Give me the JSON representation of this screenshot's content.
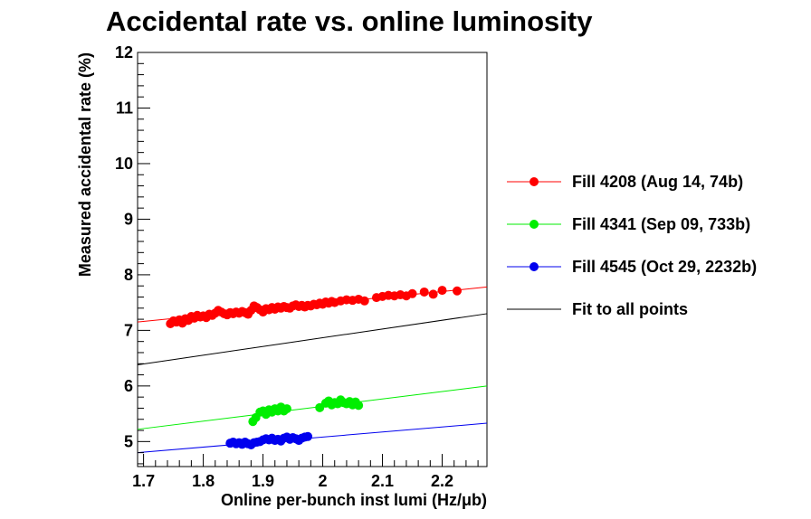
{
  "chart_data": {
    "type": "scatter",
    "title": "Accidental rate vs. online luminosity",
    "xlabel": "Online per-bunch inst lumi (Hz/μb)",
    "ylabel": "Measured accidental rate (%)",
    "xlim": [
      1.69,
      2.275
    ],
    "ylim": [
      4.55,
      12.0
    ],
    "x_ticks": [
      1.7,
      1.8,
      1.9,
      2.0,
      2.1,
      2.2
    ],
    "x_tick_labels": [
      "1.7",
      "1.8",
      "1.9",
      "2",
      "2.1",
      "2.2"
    ],
    "y_ticks": [
      5,
      6,
      7,
      8,
      9,
      10,
      11,
      12
    ],
    "y_tick_labels": [
      "5",
      "6",
      "7",
      "8",
      "9",
      "10",
      "11",
      "12"
    ],
    "grid": false,
    "legend_position": "right",
    "series": [
      {
        "name": "Fill 4208 (Aug 14, 74b)",
        "color": "#ff0000",
        "marker": "circle",
        "fit": {
          "x": [
            1.69,
            2.275
          ],
          "y": [
            7.15,
            7.78
          ]
        },
        "points": [
          [
            1.745,
            7.12
          ],
          [
            1.75,
            7.17
          ],
          [
            1.755,
            7.15
          ],
          [
            1.76,
            7.19
          ],
          [
            1.765,
            7.13
          ],
          [
            1.77,
            7.21
          ],
          [
            1.775,
            7.18
          ],
          [
            1.78,
            7.25
          ],
          [
            1.785,
            7.22
          ],
          [
            1.79,
            7.27
          ],
          [
            1.795,
            7.24
          ],
          [
            1.8,
            7.26
          ],
          [
            1.805,
            7.23
          ],
          [
            1.81,
            7.29
          ],
          [
            1.815,
            7.27
          ],
          [
            1.82,
            7.31
          ],
          [
            1.825,
            7.36
          ],
          [
            1.83,
            7.33
          ],
          [
            1.835,
            7.3
          ],
          [
            1.84,
            7.28
          ],
          [
            1.845,
            7.32
          ],
          [
            1.85,
            7.3
          ],
          [
            1.855,
            7.33
          ],
          [
            1.86,
            7.31
          ],
          [
            1.865,
            7.34
          ],
          [
            1.87,
            7.32
          ],
          [
            1.875,
            7.29
          ],
          [
            1.88,
            7.36
          ],
          [
            1.885,
            7.44
          ],
          [
            1.89,
            7.41
          ],
          [
            1.895,
            7.37
          ],
          [
            1.9,
            7.33
          ],
          [
            1.905,
            7.39
          ],
          [
            1.91,
            7.37
          ],
          [
            1.915,
            7.41
          ],
          [
            1.92,
            7.38
          ],
          [
            1.925,
            7.42
          ],
          [
            1.93,
            7.4
          ],
          [
            1.935,
            7.43
          ],
          [
            1.94,
            7.41
          ],
          [
            1.945,
            7.4
          ],
          [
            1.95,
            7.44
          ],
          [
            1.955,
            7.46
          ],
          [
            1.96,
            7.43
          ],
          [
            1.965,
            7.45
          ],
          [
            1.97,
            7.42
          ],
          [
            1.975,
            7.45
          ],
          [
            1.98,
            7.44
          ],
          [
            1.985,
            7.47
          ],
          [
            1.99,
            7.46
          ],
          [
            1.995,
            7.49
          ],
          [
            2.0,
            7.47
          ],
          [
            2.005,
            7.51
          ],
          [
            2.01,
            7.49
          ],
          [
            2.015,
            7.52
          ],
          [
            2.02,
            7.5
          ],
          [
            2.03,
            7.53
          ],
          [
            2.04,
            7.55
          ],
          [
            2.05,
            7.54
          ],
          [
            2.06,
            7.56
          ],
          [
            2.07,
            7.53
          ],
          [
            2.09,
            7.59
          ],
          [
            2.1,
            7.61
          ],
          [
            2.11,
            7.63
          ],
          [
            2.12,
            7.62
          ],
          [
            2.13,
            7.64
          ],
          [
            2.14,
            7.62
          ],
          [
            2.15,
            7.66
          ],
          [
            2.17,
            7.69
          ],
          [
            2.185,
            7.65
          ],
          [
            2.2,
            7.72
          ],
          [
            2.225,
            7.71
          ]
        ]
      },
      {
        "name": "Fill 4341 (Sep 09, 733b)",
        "color": "#00ee00",
        "marker": "circle",
        "fit": {
          "x": [
            1.69,
            2.275
          ],
          "y": [
            5.22,
            6.0
          ]
        },
        "points": [
          [
            1.883,
            5.36
          ],
          [
            1.888,
            5.43
          ],
          [
            1.895,
            5.53
          ],
          [
            1.9,
            5.55
          ],
          [
            1.905,
            5.49
          ],
          [
            1.91,
            5.57
          ],
          [
            1.915,
            5.53
          ],
          [
            1.92,
            5.59
          ],
          [
            1.925,
            5.55
          ],
          [
            1.93,
            5.62
          ],
          [
            1.935,
            5.55
          ],
          [
            1.94,
            5.59
          ],
          [
            1.995,
            5.61
          ],
          [
            2.005,
            5.69
          ],
          [
            2.01,
            5.73
          ],
          [
            2.015,
            5.66
          ],
          [
            2.02,
            5.7
          ],
          [
            2.025,
            5.68
          ],
          [
            2.03,
            5.75
          ],
          [
            2.035,
            5.7
          ],
          [
            2.04,
            5.68
          ],
          [
            2.045,
            5.72
          ],
          [
            2.05,
            5.66
          ],
          [
            2.055,
            5.71
          ],
          [
            2.06,
            5.65
          ]
        ]
      },
      {
        "name": "Fill 4545 (Oct 29, 2232b)",
        "color": "#0000ee",
        "marker": "circle",
        "fit": {
          "x": [
            1.69,
            2.275
          ],
          "y": [
            4.8,
            5.33
          ]
        },
        "points": [
          [
            1.845,
            4.97
          ],
          [
            1.85,
            4.99
          ],
          [
            1.855,
            4.96
          ],
          [
            1.86,
            4.98
          ],
          [
            1.865,
            4.95
          ],
          [
            1.87,
            4.99
          ],
          [
            1.875,
            4.96
          ],
          [
            1.88,
            4.94
          ],
          [
            1.885,
            4.98
          ],
          [
            1.89,
            4.99
          ],
          [
            1.895,
            5.0
          ],
          [
            1.9,
            5.03
          ],
          [
            1.905,
            5.05
          ],
          [
            1.91,
            5.03
          ],
          [
            1.915,
            5.06
          ],
          [
            1.92,
            5.02
          ],
          [
            1.925,
            5.04
          ],
          [
            1.93,
            5.01
          ],
          [
            1.935,
            5.06
          ],
          [
            1.94,
            5.08
          ],
          [
            1.945,
            5.04
          ],
          [
            1.95,
            5.07
          ],
          [
            1.955,
            5.05
          ],
          [
            1.96,
            5.02
          ],
          [
            1.965,
            5.06
          ],
          [
            1.97,
            5.08
          ],
          [
            1.975,
            5.09
          ]
        ]
      }
    ],
    "overall_fit": {
      "name": "Fit to all points",
      "color": "#000000",
      "x": [
        1.69,
        2.275
      ],
      "y": [
        6.38,
        7.3
      ]
    }
  }
}
